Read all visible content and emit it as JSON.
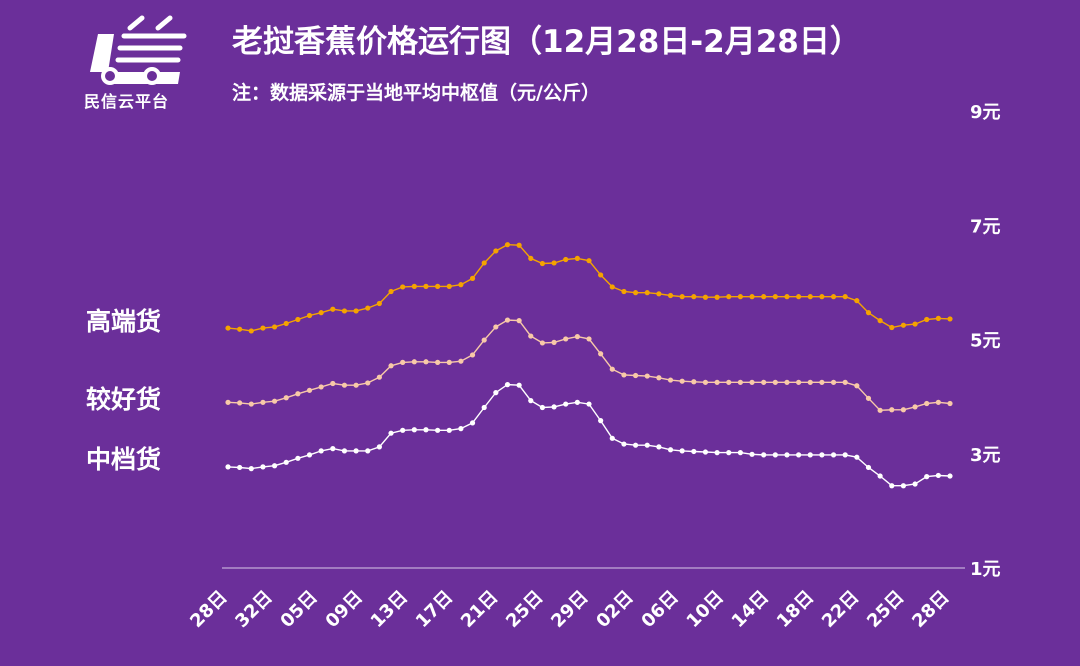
{
  "brand": {
    "name": "民信云平台"
  },
  "header": {
    "title": "老挝香蕉价格运行图（12月28日-2月28日）",
    "note": "注：数据采源于当地平均中枢值（元/公斤）"
  },
  "colors": {
    "background": "#6b2f9a",
    "high": "#f5a300",
    "good": "#f8c9a8",
    "mid": "#ffffff",
    "axis": "#d8c8e8"
  },
  "chart_data": {
    "type": "line",
    "ylim": [
      1,
      9
    ],
    "y_ticks": [
      "1元",
      "3元",
      "5元",
      "7元",
      "9元"
    ],
    "x_tick_labels": [
      "28日",
      "32日",
      "05日",
      "09日",
      "13日",
      "17日",
      "21日",
      "25日",
      "29日",
      "02日",
      "06日",
      "10日",
      "14日",
      "18日",
      "22日",
      "25日",
      "28日"
    ],
    "grid": false,
    "series": [
      {
        "name": "高端货",
        "color": "#f5a300",
        "values": [
          5.2,
          5.18,
          5.15,
          5.2,
          5.22,
          5.28,
          5.35,
          5.42,
          5.47,
          5.53,
          5.5,
          5.5,
          5.55,
          5.63,
          5.84,
          5.92,
          5.93,
          5.93,
          5.93,
          5.93,
          5.96,
          6.07,
          6.34,
          6.55,
          6.66,
          6.65,
          6.42,
          6.33,
          6.34,
          6.4,
          6.42,
          6.38,
          6.13,
          5.92,
          5.84,
          5.82,
          5.82,
          5.8,
          5.77,
          5.75,
          5.75,
          5.74,
          5.74,
          5.75,
          5.75,
          5.75,
          5.75,
          5.75,
          5.75,
          5.75,
          5.75,
          5.75,
          5.75,
          5.75,
          5.68,
          5.47,
          5.33,
          5.21,
          5.25,
          5.27,
          5.35,
          5.37,
          5.36
        ]
      },
      {
        "name": "较好货",
        "color": "#f8c9a8",
        "values": [
          3.9,
          3.89,
          3.87,
          3.9,
          3.92,
          3.98,
          4.05,
          4.11,
          4.17,
          4.23,
          4.2,
          4.2,
          4.24,
          4.34,
          4.54,
          4.6,
          4.61,
          4.61,
          4.6,
          4.6,
          4.62,
          4.73,
          4.99,
          5.22,
          5.34,
          5.33,
          5.06,
          4.94,
          4.95,
          5.01,
          5.05,
          5.01,
          4.75,
          4.48,
          4.38,
          4.37,
          4.36,
          4.33,
          4.29,
          4.27,
          4.26,
          4.25,
          4.25,
          4.25,
          4.25,
          4.25,
          4.25,
          4.25,
          4.25,
          4.25,
          4.25,
          4.25,
          4.25,
          4.25,
          4.19,
          3.97,
          3.76,
          3.77,
          3.77,
          3.82,
          3.88,
          3.9,
          3.88
        ]
      },
      {
        "name": "中档货",
        "color": "#ffffff",
        "values": [
          2.77,
          2.76,
          2.74,
          2.77,
          2.79,
          2.85,
          2.92,
          2.98,
          3.05,
          3.09,
          3.05,
          3.05,
          3.05,
          3.12,
          3.36,
          3.41,
          3.42,
          3.42,
          3.41,
          3.41,
          3.44,
          3.54,
          3.81,
          4.07,
          4.21,
          4.2,
          3.93,
          3.81,
          3.82,
          3.87,
          3.9,
          3.87,
          3.58,
          3.27,
          3.17,
          3.15,
          3.15,
          3.12,
          3.07,
          3.05,
          3.04,
          3.03,
          3.02,
          3.02,
          3.02,
          2.99,
          2.98,
          2.98,
          2.98,
          2.98,
          2.98,
          2.98,
          2.98,
          2.98,
          2.94,
          2.76,
          2.61,
          2.44,
          2.44,
          2.47,
          2.6,
          2.62,
          2.61
        ]
      }
    ]
  }
}
